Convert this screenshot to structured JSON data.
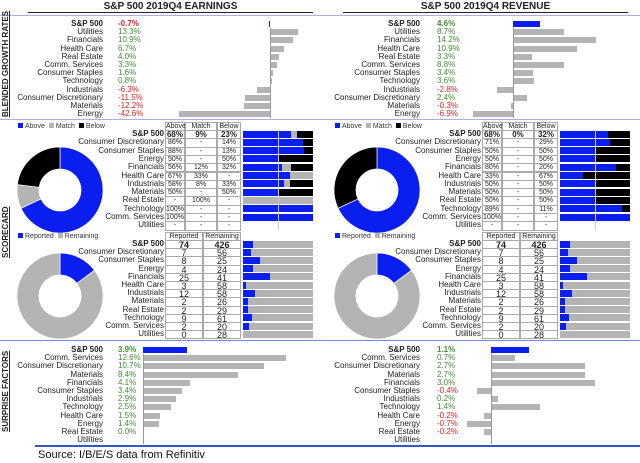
{
  "colors": {
    "above": "#0a1ef0",
    "match": "#b4b4b4",
    "below": "#000000",
    "positive": "#3f8f33",
    "negative": "#e02020",
    "bar": "#b4b4b4"
  },
  "sections": {
    "growth": "BLENDED GROWTH RATES",
    "scorecard": "SCORECARD",
    "surprise": "SURPRISE FACTORS"
  },
  "earnings": {
    "title": "S&P 500 2019Q4 EARNINGS",
    "growth": [
      {
        "label": "S&P 500",
        "value": -0.7,
        "text": "-0.7%"
      },
      {
        "label": "Utilities",
        "value": 13.3,
        "text": "13.3%"
      },
      {
        "label": "Financials",
        "value": 10.9,
        "text": "10.9%"
      },
      {
        "label": "Health Care",
        "value": 6.7,
        "text": "6.7%"
      },
      {
        "label": "Real Estate",
        "value": 4.0,
        "text": "4.0%"
      },
      {
        "label": "Comm. Services",
        "value": 3.3,
        "text": "3.3%"
      },
      {
        "label": "Consumer Staples",
        "value": 1.6,
        "text": "1.6%"
      },
      {
        "label": "Technology",
        "value": 0.8,
        "text": "0.8%"
      },
      {
        "label": "Industrials",
        "value": -6.3,
        "text": "-6.3%"
      },
      {
        "label": "Consumer Discretionary",
        "value": -11.5,
        "text": "-11.5%"
      },
      {
        "label": "Materials",
        "value": -12.2,
        "text": "-12.2%"
      },
      {
        "label": "Energy",
        "value": -42.6,
        "text": "-42.6%"
      }
    ],
    "scorecard": {
      "legend": [
        "Above",
        "Match",
        "Below"
      ],
      "headers": [
        "Above",
        "Match",
        "Below"
      ],
      "rows": [
        {
          "label": "S&P 500",
          "above": "68%",
          "match": "9%",
          "below": "23%",
          "v": [
            68,
            9,
            23
          ]
        },
        {
          "label": "Consumer Discretionary",
          "above": "86%",
          "match": "-",
          "below": "14%",
          "v": [
            86,
            0,
            14
          ]
        },
        {
          "label": "Consumer Staples",
          "above": "88%",
          "match": "-",
          "below": "13%",
          "v": [
            88,
            0,
            13
          ]
        },
        {
          "label": "Energy",
          "above": "50%",
          "match": "-",
          "below": "50%",
          "v": [
            50,
            0,
            50
          ]
        },
        {
          "label": "Financials",
          "above": "56%",
          "match": "12%",
          "below": "32%",
          "v": [
            56,
            12,
            32
          ]
        },
        {
          "label": "Health Care",
          "above": "67%",
          "match": "33%",
          "below": "-",
          "v": [
            67,
            33,
            0
          ]
        },
        {
          "label": "Industrials",
          "above": "58%",
          "match": "8%",
          "below": "33%",
          "v": [
            58,
            8,
            33
          ]
        },
        {
          "label": "Materials",
          "above": "50%",
          "match": "-",
          "below": "50%",
          "v": [
            50,
            0,
            50
          ]
        },
        {
          "label": "Real Estate",
          "above": "-",
          "match": "100%",
          "below": "-",
          "v": [
            0,
            100,
            0
          ]
        },
        {
          "label": "Technology",
          "above": "100%",
          "match": "-",
          "below": "-",
          "v": [
            100,
            0,
            0
          ]
        },
        {
          "label": "Comm. Services",
          "above": "100%",
          "match": "-",
          "below": "-",
          "v": [
            100,
            0,
            0
          ]
        },
        {
          "label": "Utilities",
          "above": "-",
          "match": "-",
          "below": "-",
          "v": [
            0,
            0,
            0
          ]
        }
      ]
    },
    "reported": {
      "legend": [
        "Reported",
        "Remaining"
      ],
      "headers": [
        "Reported",
        "Remaining"
      ],
      "rows": [
        {
          "label": "S&P 500",
          "reported": 74,
          "remaining": 426
        },
        {
          "label": "Consumer Discretionary",
          "reported": 7,
          "remaining": 56
        },
        {
          "label": "Consumer Staples",
          "reported": 8,
          "remaining": 25
        },
        {
          "label": "Energy",
          "reported": 4,
          "remaining": 24
        },
        {
          "label": "Financials",
          "reported": 25,
          "remaining": 41
        },
        {
          "label": "Health Care",
          "reported": 3,
          "remaining": 58
        },
        {
          "label": "Industrials",
          "reported": 12,
          "remaining": 58
        },
        {
          "label": "Materials",
          "reported": 2,
          "remaining": 26
        },
        {
          "label": "Real Estate",
          "reported": 2,
          "remaining": 29
        },
        {
          "label": "Technology",
          "reported": 9,
          "remaining": 61
        },
        {
          "label": "Comm. Services",
          "reported": 2,
          "remaining": 20
        },
        {
          "label": "Utilities",
          "reported": 0,
          "remaining": 28
        }
      ]
    },
    "surprise": [
      {
        "label": "S&P 500",
        "value": 3.9,
        "text": "3.9%"
      },
      {
        "label": "Comm. Services",
        "value": 12.6,
        "text": "12.6%"
      },
      {
        "label": "Consumer Discretionary",
        "value": 10.7,
        "text": "10.7%"
      },
      {
        "label": "Materials",
        "value": 8.4,
        "text": "8.4%"
      },
      {
        "label": "Financials",
        "value": 4.1,
        "text": "4.1%"
      },
      {
        "label": "Consumer Staples",
        "value": 3.4,
        "text": "3.4%"
      },
      {
        "label": "Industrials",
        "value": 2.9,
        "text": "2.9%"
      },
      {
        "label": "Technology",
        "value": 2.5,
        "text": "2.5%"
      },
      {
        "label": "Health Care",
        "value": 1.5,
        "text": "1.5%"
      },
      {
        "label": "Energy",
        "value": 1.4,
        "text": "1.4%"
      },
      {
        "label": "Real Estate",
        "value": 0.0,
        "text": "0.0%"
      },
      {
        "label": "Utilities",
        "value": null,
        "text": ""
      }
    ]
  },
  "revenue": {
    "title": "S&P 500 2019Q4 REVENUE",
    "growth": [
      {
        "label": "S&P 500",
        "value": 4.6,
        "text": "4.6%"
      },
      {
        "label": "Utilities",
        "value": 8.7,
        "text": "8.7%"
      },
      {
        "label": "Financials",
        "value": 14.2,
        "text": "14.2%"
      },
      {
        "label": "Health Care",
        "value": 10.9,
        "text": "10.9%"
      },
      {
        "label": "Real Estate",
        "value": 3.3,
        "text": "3.3%"
      },
      {
        "label": "Comm. Services",
        "value": 8.8,
        "text": "8.8%"
      },
      {
        "label": "Consumer Staples",
        "value": 3.4,
        "text": "3.4%"
      },
      {
        "label": "Technology",
        "value": 3.6,
        "text": "3.6%"
      },
      {
        "label": "Industrials",
        "value": -2.8,
        "text": "-2.8%"
      },
      {
        "label": "Consumer Discretionary",
        "value": 2.4,
        "text": "2.4%"
      },
      {
        "label": "Materials",
        "value": -0.3,
        "text": "-0.3%"
      },
      {
        "label": "Energy",
        "value": -6.9,
        "text": "-6.9%"
      }
    ],
    "scorecard": {
      "legend": [
        "Above",
        "Match",
        "Below"
      ],
      "headers": [
        "Above",
        "Match",
        "Below"
      ],
      "rows": [
        {
          "label": "S&P 500",
          "above": "68%",
          "match": "0%",
          "below": "32%",
          "v": [
            68,
            0,
            32
          ]
        },
        {
          "label": "Consumer Discretionary",
          "above": "71%",
          "match": "-",
          "below": "29%",
          "v": [
            71,
            0,
            29
          ]
        },
        {
          "label": "Consumer Staples",
          "above": "50%",
          "match": "-",
          "below": "50%",
          "v": [
            50,
            0,
            50
          ]
        },
        {
          "label": "Energy",
          "above": "50%",
          "match": "-",
          "below": "50%",
          "v": [
            50,
            0,
            50
          ]
        },
        {
          "label": "Financials",
          "above": "80%",
          "match": "-",
          "below": "20%",
          "v": [
            80,
            0,
            20
          ]
        },
        {
          "label": "Health Care",
          "above": "33%",
          "match": "-",
          "below": "67%",
          "v": [
            33,
            0,
            67
          ]
        },
        {
          "label": "Industrials",
          "above": "50%",
          "match": "-",
          "below": "50%",
          "v": [
            50,
            0,
            50
          ]
        },
        {
          "label": "Materials",
          "above": "50%",
          "match": "-",
          "below": "50%",
          "v": [
            50,
            0,
            50
          ]
        },
        {
          "label": "Real Estate",
          "above": "50%",
          "match": "-",
          "below": "50%",
          "v": [
            50,
            0,
            50
          ]
        },
        {
          "label": "Technology",
          "above": "89%",
          "match": "-",
          "below": "11%",
          "v": [
            89,
            0,
            11
          ]
        },
        {
          "label": "Comm. Services",
          "above": "100%",
          "match": "-",
          "below": "-",
          "v": [
            100,
            0,
            0
          ]
        },
        {
          "label": "Utilities",
          "above": "-",
          "match": "-",
          "below": "-",
          "v": [
            0,
            0,
            0
          ]
        }
      ]
    },
    "reported": {
      "legend": [
        "Reported",
        "Remaining"
      ],
      "headers": [
        "Reported",
        "Remaining"
      ],
      "rows": [
        {
          "label": "S&P 500",
          "reported": 74,
          "remaining": 426
        },
        {
          "label": "Consumer Discretionary",
          "reported": 7,
          "remaining": 56
        },
        {
          "label": "Consumer Staples",
          "reported": 8,
          "remaining": 25
        },
        {
          "label": "Energy",
          "reported": 4,
          "remaining": 24
        },
        {
          "label": "Financials",
          "reported": 25,
          "remaining": 41
        },
        {
          "label": "Health Care",
          "reported": 3,
          "remaining": 58
        },
        {
          "label": "Industrials",
          "reported": 12,
          "remaining": 58
        },
        {
          "label": "Materials",
          "reported": 2,
          "remaining": 26
        },
        {
          "label": "Real Estate",
          "reported": 2,
          "remaining": 29
        },
        {
          "label": "Technology",
          "reported": 9,
          "remaining": 61
        },
        {
          "label": "Comm. Services",
          "reported": 2,
          "remaining": 20
        },
        {
          "label": "Utilities",
          "reported": 0,
          "remaining": 28
        }
      ]
    },
    "surprise": [
      {
        "label": "S&P 500",
        "value": 1.1,
        "text": "1.1%"
      },
      {
        "label": "Comm. Services",
        "value": 0.7,
        "text": "0.7%"
      },
      {
        "label": "Consumer Discretionary",
        "value": 2.7,
        "text": "2.7%"
      },
      {
        "label": "Materials",
        "value": 2.7,
        "text": "2.7%"
      },
      {
        "label": "Financials",
        "value": 3.0,
        "text": "3.0%"
      },
      {
        "label": "Consumer Staples",
        "value": -0.4,
        "text": "-0.4%"
      },
      {
        "label": "Industrials",
        "value": 0.2,
        "text": "0.2%"
      },
      {
        "label": "Technology",
        "value": 1.4,
        "text": "1.4%"
      },
      {
        "label": "Health Care",
        "value": -0.2,
        "text": "-0.2%"
      },
      {
        "label": "Energy",
        "value": -0.7,
        "text": "-0.7%"
      },
      {
        "label": "Real Estate",
        "value": -0.2,
        "text": "-0.2%"
      },
      {
        "label": "Utilities",
        "value": null,
        "text": ""
      }
    ]
  },
  "source": "Source: I/B/E/S data from Refinitiv"
}
